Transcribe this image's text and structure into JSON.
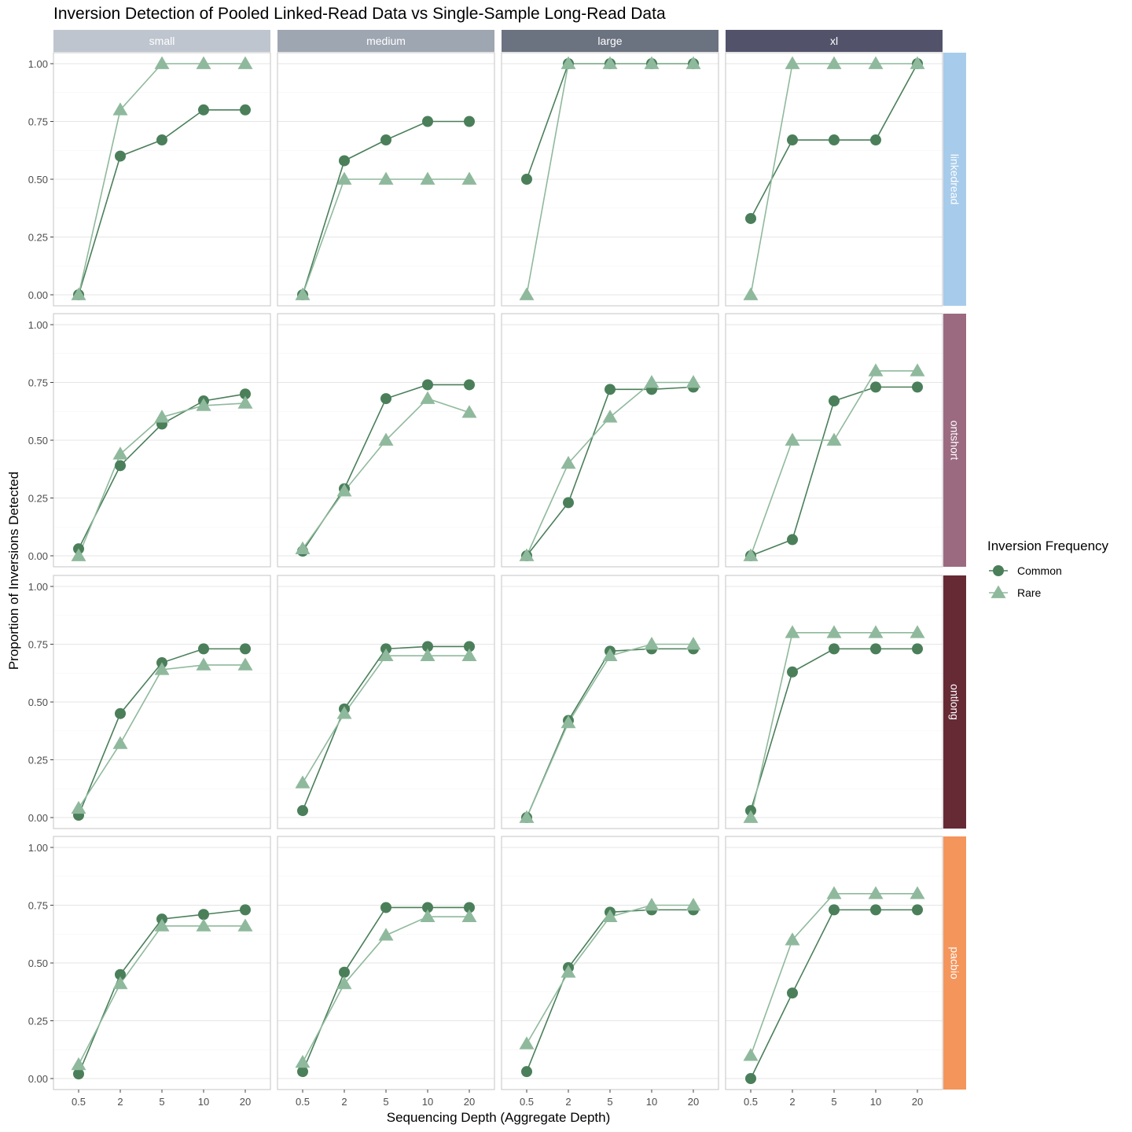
{
  "chart_data": {
    "type": "line",
    "title": "Inversion Detection of Pooled Linked-Read Data vs Single-Sample Long-Read Data",
    "xlabel": "Sequencing Depth (Aggregate Depth)",
    "ylabel": "Proportion of Inversions Detected",
    "x_ticks": [
      "0.5",
      "2",
      "5",
      "10",
      "20"
    ],
    "y_ticks": [
      "0.00",
      "0.25",
      "0.50",
      "0.75",
      "1.00"
    ],
    "ylim": [
      0,
      1
    ],
    "legend": {
      "title": "Inversion Frequency",
      "position": "right",
      "items": [
        {
          "name": "Common",
          "shape": "circle",
          "color": "#4a7f5a"
        },
        {
          "name": "Rare",
          "shape": "triangle",
          "color": "#8fb99c"
        }
      ]
    },
    "columns": [
      {
        "label": "small",
        "color": "#bec5cf"
      },
      {
        "label": "medium",
        "color": "#9ea6b2"
      },
      {
        "label": "large",
        "color": "#6b7380"
      },
      {
        "label": "xl",
        "color": "#52536b"
      }
    ],
    "rows": [
      {
        "label": "linkedread",
        "color": "#a7cbeb"
      },
      {
        "label": "ontshort",
        "color": "#9b6a80"
      },
      {
        "label": "ontlong",
        "color": "#662a35"
      },
      {
        "label": "pacbio",
        "color": "#f4955c"
      }
    ],
    "panels": [
      [
        {
          "Common": [
            0.0,
            0.6,
            0.67,
            0.8,
            0.8
          ],
          "Rare": [
            0.0,
            0.8,
            1.0,
            1.0,
            1.0
          ]
        },
        {
          "Common": [
            0.0,
            0.58,
            0.67,
            0.75,
            0.75
          ],
          "Rare": [
            0.0,
            0.5,
            0.5,
            0.5,
            0.5
          ]
        },
        {
          "Common": [
            0.5,
            1.0,
            1.0,
            1.0,
            1.0
          ],
          "Rare": [
            0.0,
            1.0,
            1.0,
            1.0,
            1.0
          ]
        },
        {
          "Common": [
            0.33,
            0.67,
            0.67,
            0.67,
            1.0
          ],
          "Rare": [
            0.0,
            1.0,
            1.0,
            1.0,
            1.0
          ]
        }
      ],
      [
        {
          "Common": [
            0.03,
            0.39,
            0.57,
            0.67,
            0.7
          ],
          "Rare": [
            0.0,
            0.44,
            0.6,
            0.65,
            0.66
          ]
        },
        {
          "Common": [
            0.02,
            0.29,
            0.68,
            0.74,
            0.74
          ],
          "Rare": [
            0.03,
            0.28,
            0.5,
            0.68,
            0.62
          ]
        },
        {
          "Common": [
            0.0,
            0.23,
            0.72,
            0.72,
            0.73
          ],
          "Rare": [
            0.0,
            0.4,
            0.6,
            0.75,
            0.75
          ]
        },
        {
          "Common": [
            0.0,
            0.07,
            0.67,
            0.73,
            0.73
          ],
          "Rare": [
            0.0,
            0.5,
            0.5,
            0.8,
            0.8
          ]
        }
      ],
      [
        {
          "Common": [
            0.01,
            0.45,
            0.67,
            0.73,
            0.73
          ],
          "Rare": [
            0.04,
            0.32,
            0.64,
            0.66,
            0.66
          ]
        },
        {
          "Common": [
            0.03,
            0.47,
            0.73,
            0.74,
            0.74
          ],
          "Rare": [
            0.15,
            0.45,
            0.7,
            0.7,
            0.7
          ]
        },
        {
          "Common": [
            0.0,
            0.42,
            0.72,
            0.73,
            0.73
          ],
          "Rare": [
            0.0,
            0.41,
            0.7,
            0.75,
            0.75
          ]
        },
        {
          "Common": [
            0.03,
            0.63,
            0.73,
            0.73,
            0.73
          ],
          "Rare": [
            0.0,
            0.8,
            0.8,
            0.8,
            0.8
          ]
        }
      ],
      [
        {
          "Common": [
            0.02,
            0.45,
            0.69,
            0.71,
            0.73
          ],
          "Rare": [
            0.06,
            0.41,
            0.66,
            0.66,
            0.66
          ]
        },
        {
          "Common": [
            0.03,
            0.46,
            0.74,
            0.74,
            0.74
          ],
          "Rare": [
            0.07,
            0.41,
            0.62,
            0.7,
            0.7
          ]
        },
        {
          "Common": [
            0.03,
            0.48,
            0.72,
            0.73,
            0.73
          ],
          "Rare": [
            0.15,
            0.46,
            0.7,
            0.75,
            0.75
          ]
        },
        {
          "Common": [
            0.0,
            0.37,
            0.73,
            0.73,
            0.73
          ],
          "Rare": [
            0.1,
            0.6,
            0.8,
            0.8,
            0.8
          ]
        }
      ]
    ]
  }
}
